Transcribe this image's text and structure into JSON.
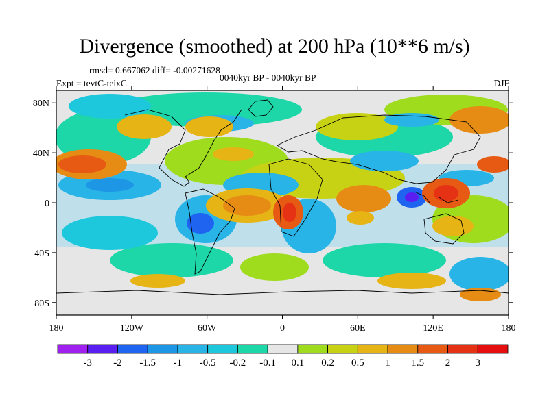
{
  "title": "Divergence (smoothed) at 200 hPa (10**6 m/s)",
  "stats": "rmsd= 0.667062 diff= -0.00271628",
  "experiment": "Expt = tevtC-teixC",
  "period": "0040kyr BP - 0040kyr BP",
  "season": "DJF",
  "lat_ticks": [
    "80N",
    "40N",
    "0",
    "40S",
    "80S"
  ],
  "lon_ticks": [
    "180",
    "120W",
    "60W",
    "0",
    "60E",
    "120E",
    "180"
  ],
  "colorbar": {
    "colors": [
      "#a020f0",
      "#5a1ff0",
      "#1e64f0",
      "#1e96e6",
      "#28b4e6",
      "#1ec8dc",
      "#1ed7a8",
      "#e6e6e6",
      "#a0dc1e",
      "#c8d214",
      "#e6b414",
      "#e68c14",
      "#e65a14",
      "#e63214",
      "#e60f0f"
    ],
    "labels": [
      "-3",
      "-2",
      "-1.5",
      "-1",
      "-0.5",
      "-0.2",
      "-0.1",
      "0.1",
      "0.2",
      "0.5",
      "1",
      "1.5",
      "2",
      "3"
    ]
  },
  "map_extent": {
    "lon": [
      -180,
      180
    ],
    "lat": [
      -90,
      90
    ]
  }
}
